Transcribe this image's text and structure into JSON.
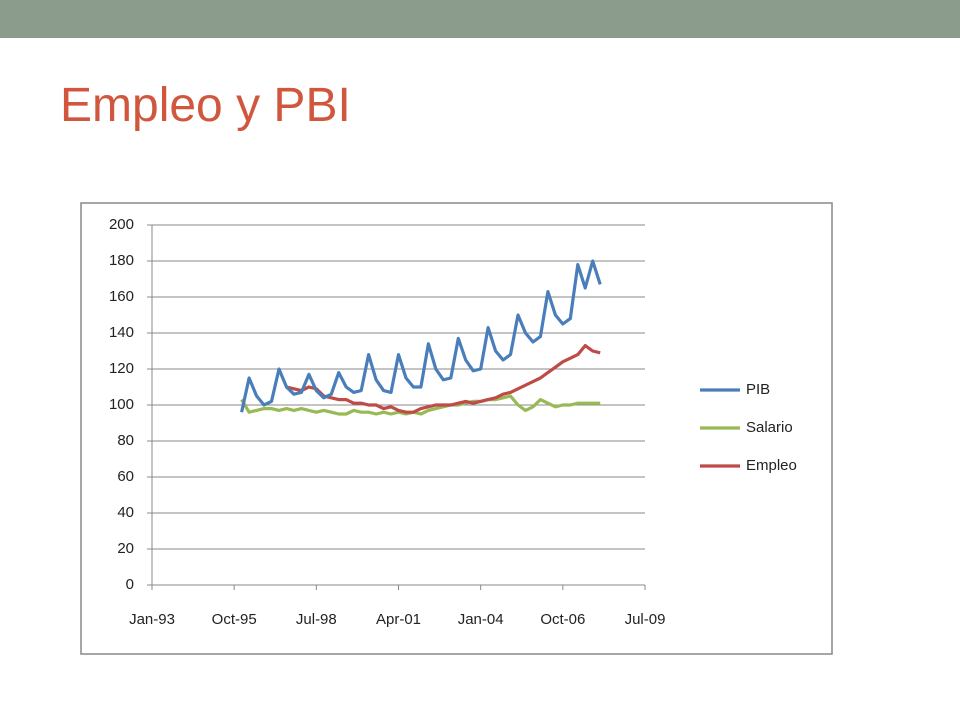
{
  "chart_data": {
    "type": "line",
    "title": "Empleo y PBI",
    "x": [
      "1996-01",
      "1996-04",
      "1996-07",
      "1996-10",
      "1997-01",
      "1997-04",
      "1997-07",
      "1997-10",
      "1998-01",
      "1998-04",
      "1998-07",
      "1998-10",
      "1999-01",
      "1999-04",
      "1999-07",
      "1999-10",
      "2000-01",
      "2000-04",
      "2000-07",
      "2000-10",
      "2001-01",
      "2001-04",
      "2001-07",
      "2001-10",
      "2002-01",
      "2002-04",
      "2002-07",
      "2002-10",
      "2003-01",
      "2003-04",
      "2003-07",
      "2003-10",
      "2004-01",
      "2004-04",
      "2004-07",
      "2004-10",
      "2005-01",
      "2005-04",
      "2005-07",
      "2005-10",
      "2006-01",
      "2006-04",
      "2006-07",
      "2006-10",
      "2007-01",
      "2007-04",
      "2007-07",
      "2007-10",
      "2008-01"
    ],
    "series": [
      {
        "name": "PIB",
        "color": "#4a7ebb",
        "values": [
          96,
          115,
          105,
          100,
          102,
          120,
          110,
          106,
          107,
          117,
          108,
          104,
          106,
          118,
          110,
          107,
          108,
          128,
          114,
          108,
          107,
          128,
          115,
          110,
          110,
          134,
          120,
          114,
          115,
          137,
          125,
          119,
          120,
          143,
          130,
          125,
          128,
          150,
          140,
          135,
          138,
          163,
          150,
          145,
          148,
          178,
          165,
          180,
          167
        ]
      },
      {
        "name": "Salario",
        "color": "#98b954",
        "values": [
          103,
          96,
          97,
          98,
          98,
          97,
          98,
          97,
          98,
          97,
          96,
          97,
          96,
          95,
          95,
          97,
          96,
          96,
          95,
          96,
          95,
          96,
          95,
          96,
          95,
          97,
          98,
          99,
          100,
          100,
          101,
          102,
          102,
          103,
          103,
          104,
          105,
          100,
          97,
          99,
          103,
          101,
          99,
          100,
          100,
          101,
          101,
          101,
          101
        ]
      },
      {
        "name": "Empleo",
        "color": "#be4b48",
        "values": [
          null,
          null,
          null,
          null,
          null,
          null,
          110,
          109,
          108,
          110,
          109,
          105,
          104,
          103,
          103,
          101,
          101,
          100,
          100,
          98,
          99,
          97,
          96,
          96,
          98,
          99,
          100,
          100,
          100,
          101,
          102,
          101,
          102,
          103,
          104,
          106,
          107,
          109,
          111,
          113,
          115,
          118,
          121,
          124,
          126,
          128,
          133,
          130,
          129
        ]
      }
    ],
    "xlim": [
      "1993-01",
      "2009-07"
    ],
    "xticks": [
      {
        "value": "1993-01",
        "label": "Jan-93"
      },
      {
        "value": "1995-10",
        "label": "Oct-95"
      },
      {
        "value": "1998-07",
        "label": "Jul-98"
      },
      {
        "value": "2001-04",
        "label": "Apr-01"
      },
      {
        "value": "2004-01",
        "label": "Jan-04"
      },
      {
        "value": "2006-10",
        "label": "Oct-06"
      },
      {
        "value": "2009-07",
        "label": "Jul-09"
      }
    ],
    "ylim": [
      0,
      200
    ],
    "yticks": [
      0,
      20,
      40,
      60,
      80,
      100,
      120,
      140,
      160,
      180,
      200
    ],
    "grid": true,
    "legend": "right"
  }
}
